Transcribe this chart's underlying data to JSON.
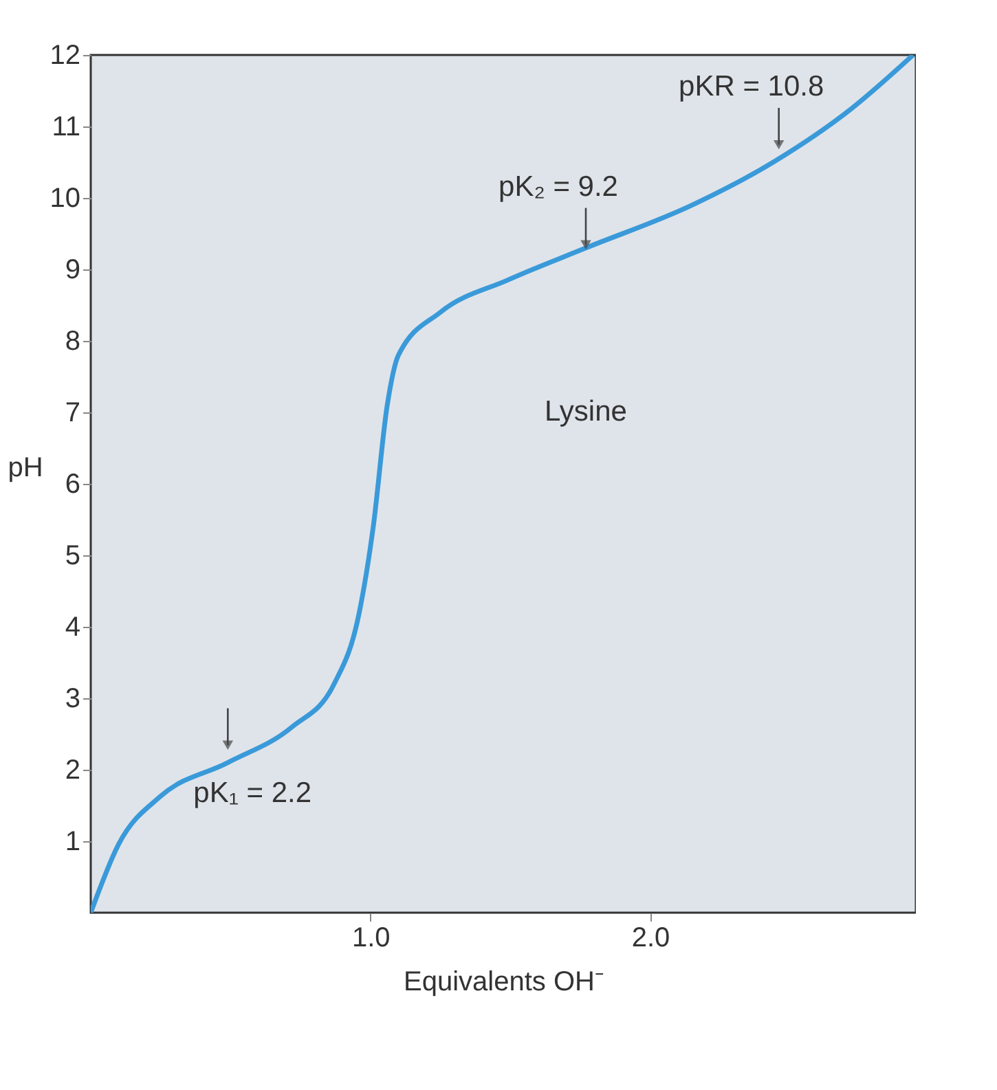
{
  "chart_data": {
    "type": "line",
    "xlabel": "Equivalents OH⁻",
    "ylabel": "pH",
    "x": [
      0,
      0.1,
      0.25,
      0.49,
      0.72,
      0.87,
      0.96,
      1.01,
      1.06,
      1.1,
      1.25,
      1.49,
      1.77,
      2.15,
      2.44,
      2.72,
      2.94
    ],
    "series": [
      {
        "color": "#3a9ad9",
        "values": [
          0,
          0.96,
          1.63,
          2.1,
          2.6,
          3.2,
          4.2,
          5.4,
          7.1,
          7.8,
          8.4,
          8.85,
          9.3,
          9.9,
          10.5,
          11.25,
          12
        ]
      }
    ],
    "xlim": [
      0,
      2.95
    ],
    "xticks": [
      {
        "value": 1,
        "label": "1.0"
      },
      {
        "value": 2,
        "label": "2.0"
      }
    ],
    "ylim": [
      0,
      12
    ],
    "yticks": [
      1,
      2,
      3,
      4,
      5,
      6,
      7,
      8,
      9,
      10,
      11,
      12
    ],
    "annotations": [
      {
        "text": "pK₁ = 2.2",
        "x": 0.49,
        "y": 2.2
      },
      {
        "text": "pK₂ = 9.2",
        "x": 1.77,
        "y": 9.2
      },
      {
        "text": "pKR = 10.8",
        "x": 2.46,
        "y": 10.6
      },
      "Lysine"
    ],
    "grid": false,
    "line_style": "solid",
    "marker": "none"
  }
}
